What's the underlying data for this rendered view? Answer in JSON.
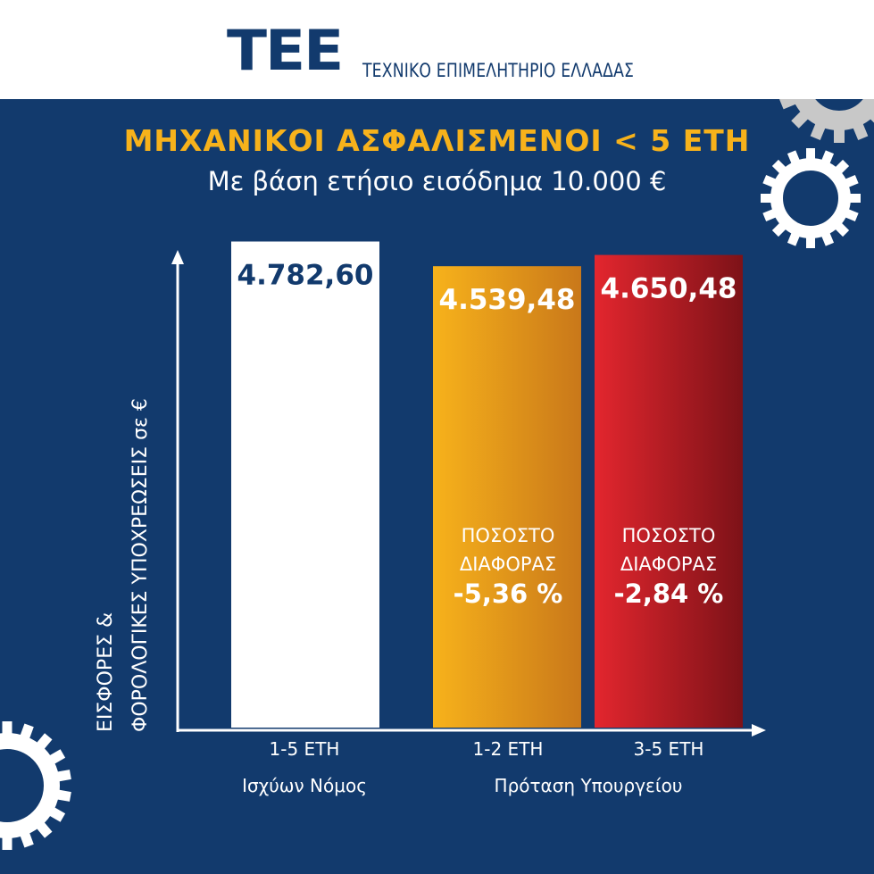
{
  "header": {
    "logo_text": "ΤΕΕ",
    "org_name": "ΤΕΧΝΙΚΟ ΕΠΙΜΕΛΗΤΗΡΙΟ ΕΛΛΑΔΑΣ"
  },
  "colors": {
    "background": "#123a6d",
    "accent": "#f7b21b",
    "white_bar": "#ffffff",
    "orange_bar": "#e89a14",
    "red_bar": "#c8202a"
  },
  "chart_data": {
    "type": "bar",
    "title": "ΜΗΧΑΝΙΚΟΙ ΑΣΦΑΛΙΣΜΕΝΟΙ < 5 ΕΤΗ",
    "subtitle": "Με βάση ετήσιο εισόδημα 10.000 €",
    "ylabel_line1": "ΕΙΣΦΟΡΕΣ &",
    "ylabel_line2": "ΦΟΡΟΛΟΓΙΚΕΣ ΥΠΟΧΡΕΩΣΕΙΣ σε €",
    "values": [
      4782.6,
      4539.48,
      4650.48
    ],
    "value_labels": [
      "4.782,60",
      "4.539,48",
      "4.650,48"
    ],
    "categories": [
      "1-5 ΕΤΗ",
      "1-2 ΕΤΗ",
      "3-5 ΕΤΗ"
    ],
    "groups": [
      "Ισχύων Νόμος",
      "Πρόταση Υπουργείου"
    ],
    "diff_text_line1": "ΠΟΣΟΣΤΟ",
    "diff_text_line2": "ΔΙΑΦΟΡΑΣ",
    "diffs": [
      "",
      "-5,36 %",
      "-2,84 %"
    ],
    "ylim": [
      0,
      5200
    ]
  }
}
